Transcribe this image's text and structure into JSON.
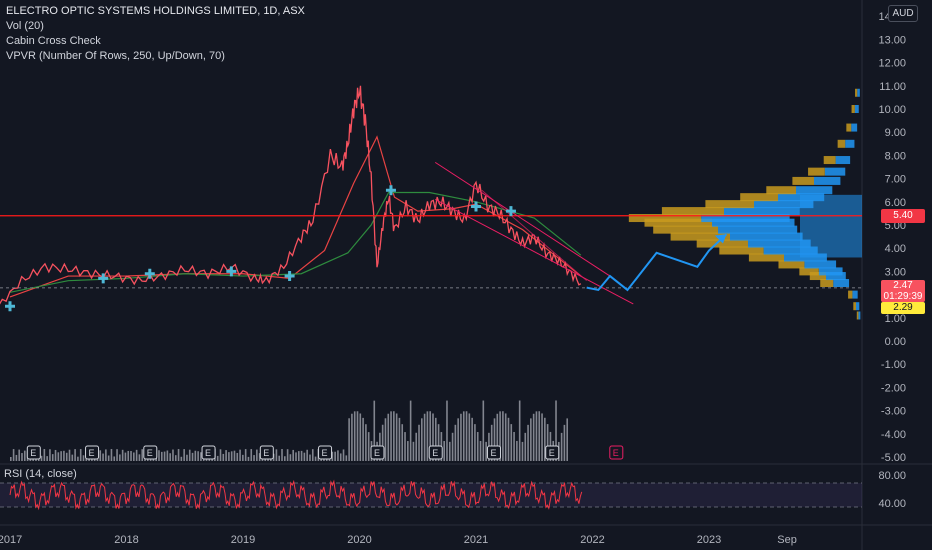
{
  "legend": {
    "title": "ELECTRO OPTIC SYSTEMS HOLDINGS LIMITED, 1D, ASX",
    "vol": "Vol (20)",
    "indicator": "Cabin Cross Check",
    "vpvr": "VPVR (Number Of Rows, 250, Up/Down, 70)",
    "rsi": "RSI (14, close)"
  },
  "currency": "AUD",
  "price_tags": {
    "horizontal_line": "5.40",
    "last_price": "2.47",
    "countdown": "01:29:39",
    "prev_close": "2.29"
  },
  "colors": {
    "background": "#131722",
    "up": "#f7525f",
    "horizontal_line": "#ff1a1a",
    "channel": "#e91e63",
    "projection": "#2196f3",
    "ma_red": "#e84343",
    "ma_green": "#2e8b3e",
    "vpvr_up": "#2196f3",
    "vpvr_down": "#c89a1e",
    "rsi": "#f23645"
  },
  "chart_data": {
    "type": "line",
    "x_ticks": [
      "2017",
      "2018",
      "2019",
      "2020",
      "2021",
      "2022",
      "2023",
      "Sep"
    ],
    "x_tick_years": [
      2017.0,
      2018.0,
      2019.0,
      2020.0,
      2021.0,
      2022.0,
      2023.0,
      2023.67
    ],
    "price_axis_ticks": [
      "14.00",
      "13.00",
      "12.00",
      "11.00",
      "10.00",
      "9.00",
      "8.00",
      "7.00",
      "6.00",
      "5.00",
      "4.00",
      "3.00",
      "2.00",
      "1.00",
      "0.00",
      "-1.00",
      "-2.00",
      "-3.00",
      "-4.00",
      "-5.00"
    ],
    "rsi_axis_ticks": [
      "80.00",
      "40.00"
    ],
    "price_series": {
      "x": [
        2016.9,
        2017.1,
        2017.3,
        2017.5,
        2017.7,
        2017.9,
        2018.1,
        2018.3,
        2018.5,
        2018.7,
        2018.9,
        2019.1,
        2019.2,
        2019.35,
        2019.5,
        2019.6,
        2019.75,
        2019.85,
        2019.9,
        2019.95,
        2020.0,
        2020.05,
        2020.1,
        2020.15,
        2020.2,
        2020.25,
        2020.3,
        2020.4,
        2020.5,
        2020.6,
        2020.7,
        2020.8,
        2020.9,
        2021.0,
        2021.1,
        2021.2,
        2021.3,
        2021.4,
        2021.5,
        2021.6,
        2021.7,
        2021.8,
        2021.9
      ],
      "y": [
        1.5,
        2.6,
        3.2,
        3.1,
        2.9,
        2.8,
        2.6,
        2.8,
        3.1,
        2.9,
        3.2,
        2.7,
        2.6,
        3.2,
        4.5,
        5.2,
        8.0,
        7.5,
        8.5,
        10.0,
        10.8,
        9.5,
        7.0,
        3.2,
        5.0,
        6.2,
        4.8,
        5.8,
        5.2,
        5.9,
        6.0,
        5.6,
        5.2,
        6.8,
        5.8,
        5.5,
        4.8,
        4.2,
        4.5,
        3.8,
        3.5,
        3.0,
        2.47
      ]
    },
    "projection": {
      "x": [
        2021.95,
        2022.05,
        2022.15,
        2022.3,
        2022.55,
        2022.9
      ],
      "y": [
        2.3,
        2.2,
        2.8,
        2.2,
        3.8,
        3.2
      ]
    },
    "projection_extra": {
      "x": [
        2022.9,
        2023.0,
        2023.15
      ],
      "y": [
        3.2,
        3.9,
        4.6
      ]
    },
    "horizontal_line": 5.4,
    "last_price": 2.47,
    "prev_close": 2.29,
    "earnings_markers": [
      "E",
      "E",
      "E",
      "E",
      "E",
      "E",
      "E",
      "E",
      "E",
      "E",
      "E",
      "E",
      "E"
    ],
    "upcoming_earnings": "E",
    "rsi_range": [
      30,
      70
    ],
    "grid": false
  }
}
